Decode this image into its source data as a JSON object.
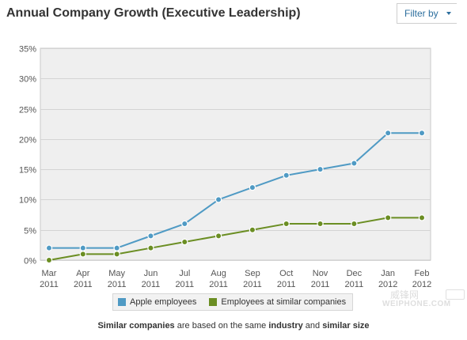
{
  "header": {
    "title": "Annual Company Growth (Executive Leadership)",
    "filter_label": "Filter by"
  },
  "colors": {
    "apple": "#4f9ac4",
    "similar": "#6b8e23",
    "plot_bg": "#efefef",
    "grid": "#d4d4d4",
    "axis_text": "#555555"
  },
  "chart_data": {
    "type": "line",
    "categories": [
      [
        "Mar",
        "2011"
      ],
      [
        "Apr",
        "2011"
      ],
      [
        "May",
        "2011"
      ],
      [
        "Jun",
        "2011"
      ],
      [
        "Jul",
        "2011"
      ],
      [
        "Aug",
        "2011"
      ],
      [
        "Sep",
        "2011"
      ],
      [
        "Oct",
        "2011"
      ],
      [
        "Nov",
        "2011"
      ],
      [
        "Dec",
        "2011"
      ],
      [
        "Jan",
        "2012"
      ],
      [
        "Feb",
        "2012"
      ]
    ],
    "ylim": [
      0,
      35
    ],
    "yticks": [
      0,
      5,
      10,
      15,
      20,
      25,
      30,
      35
    ],
    "ytick_format": "percent",
    "grid": true,
    "series": [
      {
        "name": "Apple employees",
        "values": [
          2,
          2,
          2,
          4,
          6,
          10,
          12,
          14,
          15,
          16,
          21,
          21
        ]
      },
      {
        "name": "Employees at similar companies",
        "values": [
          0,
          1,
          1,
          2,
          3,
          4,
          5,
          6,
          6,
          6,
          7,
          7
        ]
      }
    ]
  },
  "legend": {
    "items": [
      {
        "label": "Apple employees"
      },
      {
        "label": "Employees at similar companies"
      }
    ]
  },
  "footnote": {
    "part1": "Similar companies",
    "part2": " are based on the same ",
    "part3": "industry",
    "part4": " and ",
    "part5": "similar size"
  },
  "watermark": {
    "cn": "威锋网",
    "en": "WEIPHONE.COM"
  }
}
